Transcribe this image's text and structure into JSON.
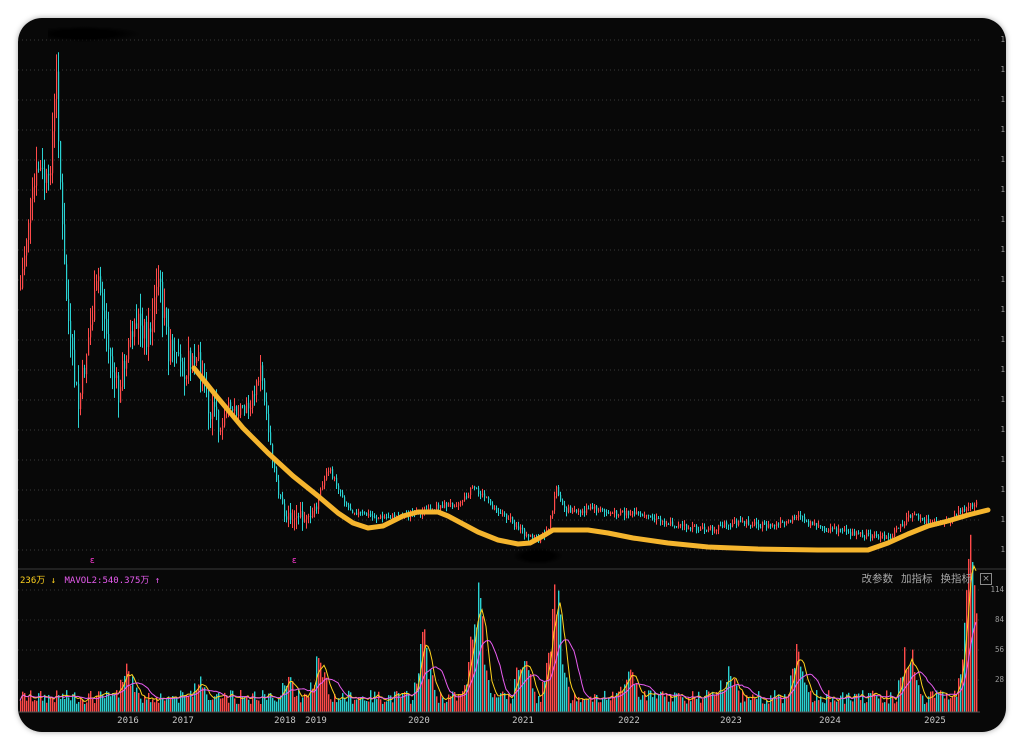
{
  "chart_data": {
    "type": "candlestick",
    "x_axis_years": [
      "2016",
      "2017",
      "2018",
      "2019",
      "2020",
      "2021",
      "2022",
      "2023",
      "2024",
      "2025"
    ],
    "event_markers": [
      {
        "label": "ε",
        "year": 2015.35
      },
      {
        "label": "ε",
        "year": 2018.3
      }
    ],
    "volume_legend": {
      "mavol1_text": "236万 ↓",
      "mavol2_text": "MAVOL2:540.375万 ↑",
      "mavol1_color": "#ffd21e",
      "mavol2_color": "#e85cf0"
    },
    "volume_axis_ticks": [
      "114",
      "84",
      "56",
      "28"
    ],
    "trend_line_color": "#f5b52e",
    "up_color": "#ff4a4a",
    "down_color": "#2ad2d2",
    "price_axis_ticks_note": "right-edge price ticks are cut off by the frame"
  },
  "toolbar": {
    "modify_params": "改参数",
    "add_indicator": "加指标",
    "switch_indicator": "换指标",
    "close_symbol": "×"
  }
}
